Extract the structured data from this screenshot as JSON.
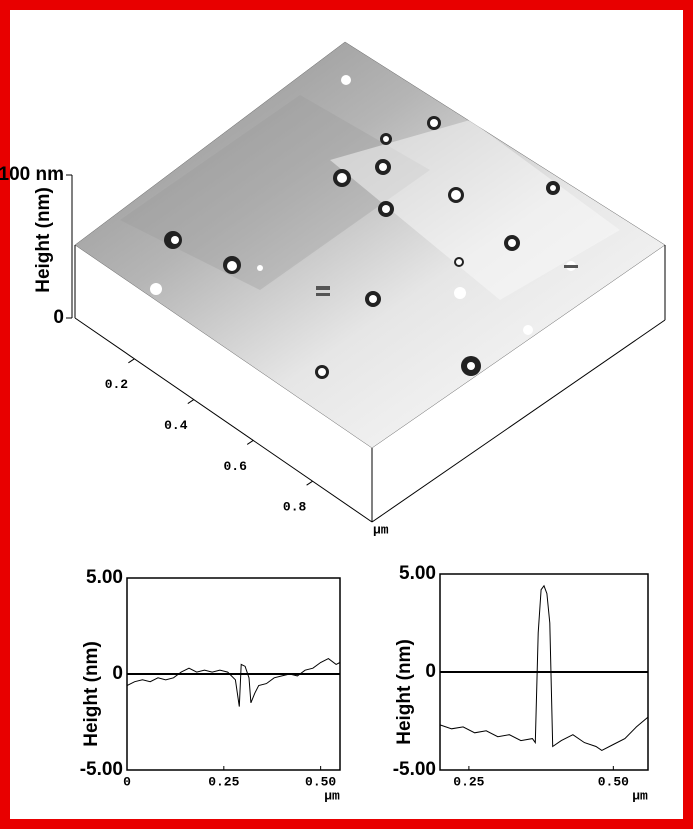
{
  "chart_data": [
    {
      "type": "surface",
      "ylabel": "Height (nm)",
      "xlabel": "μm",
      "zlim": [
        0,
        100
      ],
      "zticks": [
        0,
        {
          "value": 100,
          "label": "100 nm"
        }
      ],
      "xlim": [
        0,
        1
      ],
      "xticks": [
        0.2,
        0.4,
        0.6,
        0.8
      ]
    },
    {
      "type": "line",
      "ylabel": "Height (nm)",
      "xlabel": "μm",
      "color": "#000000",
      "xlim": [
        0,
        0.55
      ],
      "xticks": [
        0,
        0.25,
        {
          "value": 0.5,
          "label": "0.50"
        }
      ],
      "ylim": [
        -5,
        5
      ],
      "yticks": [
        {
          "value": -5,
          "label": "-5.00"
        },
        0,
        {
          "value": 5,
          "label": "5.00"
        }
      ],
      "x": [
        0,
        0.02,
        0.04,
        0.06,
        0.08,
        0.1,
        0.12,
        0.14,
        0.16,
        0.18,
        0.2,
        0.22,
        0.24,
        0.26,
        0.28,
        0.29,
        0.295,
        0.305,
        0.315,
        0.32,
        0.33,
        0.34,
        0.36,
        0.38,
        0.4,
        0.42,
        0.44,
        0.46,
        0.48,
        0.5,
        0.52,
        0.54,
        0.55
      ],
      "values": [
        -0.6,
        -0.4,
        -0.3,
        -0.4,
        -0.2,
        -0.3,
        -0.2,
        0.1,
        0.3,
        0.1,
        0.2,
        0.1,
        0.2,
        0.1,
        -0.3,
        -1.7,
        0.5,
        0.4,
        -0.2,
        -1.5,
        -1.0,
        -0.6,
        -0.5,
        -0.2,
        -0.1,
        0.0,
        -0.1,
        0.2,
        0.3,
        0.6,
        0.8,
        0.5,
        0.6
      ]
    },
    {
      "type": "line",
      "ylabel": "Height (nm)",
      "xlabel": "μm",
      "color": "#000000",
      "xlim": [
        0.2,
        0.56
      ],
      "xticks": [
        0.25,
        {
          "value": 0.5,
          "label": "0.50"
        }
      ],
      "ylim": [
        -5,
        5
      ],
      "yticks": [
        {
          "value": -5,
          "label": "-5.00"
        },
        0,
        {
          "value": 5,
          "label": "5.00"
        }
      ],
      "x": [
        0.2,
        0.22,
        0.24,
        0.26,
        0.28,
        0.3,
        0.32,
        0.34,
        0.36,
        0.365,
        0.37,
        0.375,
        0.38,
        0.385,
        0.39,
        0.395,
        0.41,
        0.43,
        0.45,
        0.47,
        0.48,
        0.5,
        0.52,
        0.54,
        0.56
      ],
      "values": [
        -2.7,
        -2.9,
        -2.8,
        -3.1,
        -3.0,
        -3.3,
        -3.2,
        -3.5,
        -3.4,
        -3.6,
        2.0,
        4.2,
        4.4,
        4.0,
        2.5,
        -3.8,
        -3.5,
        -3.2,
        -3.6,
        -3.8,
        -4.0,
        -3.7,
        -3.4,
        -2.8,
        -2.3
      ]
    }
  ]
}
